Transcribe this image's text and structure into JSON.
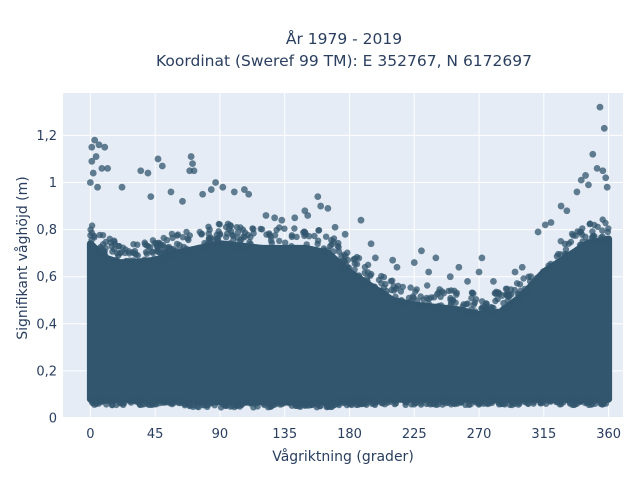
{
  "chart_data": {
    "type": "scatter",
    "title_line1": "År 1979 - 2019",
    "title_line2": "Koordinat (Sweref 99 TM): E 352767, N 6172697",
    "xlabel": "Vågriktning (grader)",
    "ylabel": "Signifikant våghöjd (m)",
    "xlim": [
      -19,
      370
    ],
    "ylim": [
      0,
      1.38
    ],
    "x_ticks": [
      0,
      45,
      90,
      135,
      180,
      225,
      270,
      315,
      360
    ],
    "x_tick_labels": [
      "0",
      "45",
      "90",
      "135",
      "180",
      "225",
      "270",
      "315",
      "360"
    ],
    "y_ticks": [
      0,
      0.2,
      0.4,
      0.6,
      0.8,
      1,
      1.2
    ],
    "y_tick_labels": [
      "0",
      "0,2",
      "0,4",
      "0,6",
      "0,8",
      "1",
      "1,2"
    ],
    "grid": true,
    "marker_color": "#31566d",
    "plot_bg": "#e5ecf6",
    "dense_band": {
      "x": [
        0,
        10,
        20,
        30,
        45,
        60,
        75,
        90,
        105,
        120,
        135,
        150,
        165,
        180,
        195,
        210,
        225,
        240,
        255,
        270,
        285,
        300,
        315,
        330,
        345,
        360
      ],
      "y_low": [
        0.08,
        0.08,
        0.08,
        0.08,
        0.08,
        0.08,
        0.07,
        0.07,
        0.07,
        0.07,
        0.07,
        0.07,
        0.07,
        0.08,
        0.08,
        0.08,
        0.08,
        0.08,
        0.08,
        0.08,
        0.08,
        0.08,
        0.08,
        0.08,
        0.08,
        0.08
      ],
      "y_high": [
        0.74,
        0.68,
        0.66,
        0.66,
        0.67,
        0.7,
        0.72,
        0.74,
        0.73,
        0.72,
        0.72,
        0.72,
        0.7,
        0.62,
        0.56,
        0.5,
        0.48,
        0.47,
        0.46,
        0.44,
        0.45,
        0.52,
        0.62,
        0.68,
        0.74,
        0.76
      ]
    },
    "outliers": [
      {
        "x": 1,
        "y": 1.15
      },
      {
        "x": 3,
        "y": 1.18
      },
      {
        "x": 6,
        "y": 1.16
      },
      {
        "x": 10,
        "y": 1.15
      },
      {
        "x": 1,
        "y": 1.09
      },
      {
        "x": 4,
        "y": 1.11
      },
      {
        "x": 2,
        "y": 1.04
      },
      {
        "x": 8,
        "y": 1.06
      },
      {
        "x": 12,
        "y": 1.06
      },
      {
        "x": 0,
        "y": 1.0
      },
      {
        "x": 5,
        "y": 0.98
      },
      {
        "x": 22,
        "y": 0.98
      },
      {
        "x": 35,
        "y": 1.05
      },
      {
        "x": 40,
        "y": 1.04
      },
      {
        "x": 42,
        "y": 0.94
      },
      {
        "x": 50,
        "y": 1.07
      },
      {
        "x": 47,
        "y": 1.1
      },
      {
        "x": 56,
        "y": 0.96
      },
      {
        "x": 64,
        "y": 0.92
      },
      {
        "x": 70,
        "y": 1.11
      },
      {
        "x": 71,
        "y": 1.08
      },
      {
        "x": 69,
        "y": 1.05
      },
      {
        "x": 72,
        "y": 1.05
      },
      {
        "x": 78,
        "y": 0.95
      },
      {
        "x": 84,
        "y": 0.97
      },
      {
        "x": 87,
        "y": 1.0
      },
      {
        "x": 92,
        "y": 0.98
      },
      {
        "x": 100,
        "y": 0.96
      },
      {
        "x": 107,
        "y": 0.97
      },
      {
        "x": 110,
        "y": 0.95
      },
      {
        "x": 122,
        "y": 0.86
      },
      {
        "x": 128,
        "y": 0.85
      },
      {
        "x": 133,
        "y": 0.84
      },
      {
        "x": 142,
        "y": 0.85
      },
      {
        "x": 149,
        "y": 0.88
      },
      {
        "x": 151,
        "y": 0.86
      },
      {
        "x": 158,
        "y": 0.94
      },
      {
        "x": 160,
        "y": 0.9
      },
      {
        "x": 165,
        "y": 0.89
      },
      {
        "x": 170,
        "y": 0.81
      },
      {
        "x": 177,
        "y": 0.78
      },
      {
        "x": 188,
        "y": 0.84
      },
      {
        "x": 195,
        "y": 0.74
      },
      {
        "x": 198,
        "y": 0.68
      },
      {
        "x": 210,
        "y": 0.67
      },
      {
        "x": 213,
        "y": 0.64
      },
      {
        "x": 225,
        "y": 0.66
      },
      {
        "x": 230,
        "y": 0.71
      },
      {
        "x": 235,
        "y": 0.62
      },
      {
        "x": 240,
        "y": 0.68
      },
      {
        "x": 250,
        "y": 0.6
      },
      {
        "x": 256,
        "y": 0.64
      },
      {
        "x": 262,
        "y": 0.58
      },
      {
        "x": 270,
        "y": 0.62
      },
      {
        "x": 272,
        "y": 0.68
      },
      {
        "x": 280,
        "y": 0.58
      },
      {
        "x": 286,
        "y": 0.52
      },
      {
        "x": 295,
        "y": 0.62
      },
      {
        "x": 300,
        "y": 0.64
      },
      {
        "x": 306,
        "y": 0.6
      },
      {
        "x": 311,
        "y": 0.79
      },
      {
        "x": 316,
        "y": 0.82
      },
      {
        "x": 320,
        "y": 0.83
      },
      {
        "x": 327,
        "y": 0.9
      },
      {
        "x": 331,
        "y": 0.88
      },
      {
        "x": 338,
        "y": 0.96
      },
      {
        "x": 341,
        "y": 1.01
      },
      {
        "x": 344,
        "y": 1.03
      },
      {
        "x": 346,
        "y": 0.99
      },
      {
        "x": 349,
        "y": 1.12
      },
      {
        "x": 352,
        "y": 1.06
      },
      {
        "x": 356,
        "y": 1.05
      },
      {
        "x": 358,
        "y": 1.02
      },
      {
        "x": 359,
        "y": 0.98
      },
      {
        "x": 357,
        "y": 1.23
      },
      {
        "x": 354,
        "y": 1.32
      }
    ]
  }
}
